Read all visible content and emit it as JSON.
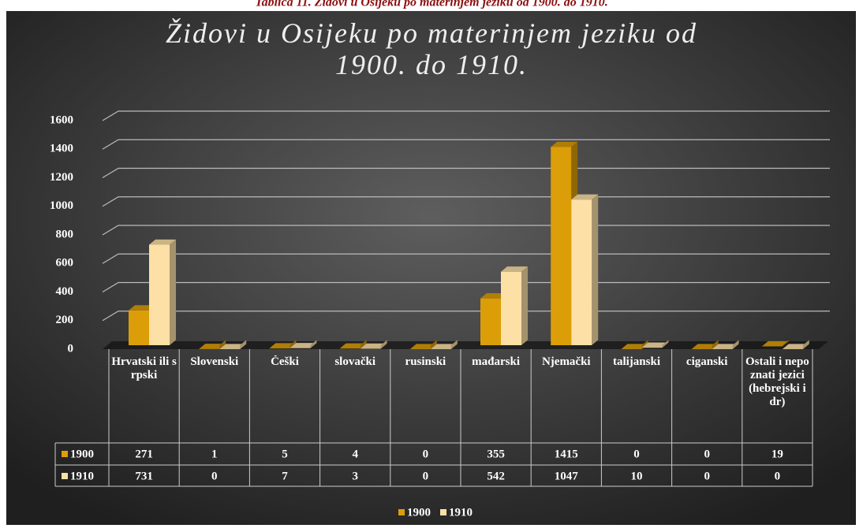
{
  "caption": "Tablica 11. Židovi u Osijeku po materinjem  jeziku od 1900. do 1910.",
  "chart_data": {
    "type": "bar3d",
    "title": "Židovi u Osijeku po materinjem  jeziku od 1900. do 1910.",
    "categories": [
      "Hrvatski ili srpski",
      "Slovenski",
      "Češki",
      "slovački",
      "rusinski",
      "mađarski",
      "Njemački",
      "talijanski",
      "ciganski",
      "Ostali i nepoznati jezici (hebrejski i dr)"
    ],
    "series": [
      {
        "name": "1900",
        "color": "#dc9e08",
        "values": [
          271,
          1,
          5,
          4,
          0,
          355,
          1415,
          0,
          0,
          19
        ]
      },
      {
        "name": "1910",
        "color": "#fde0a6",
        "values": [
          731,
          0,
          7,
          3,
          0,
          542,
          1047,
          10,
          0,
          0
        ]
      }
    ],
    "ylim": [
      0,
      1600
    ],
    "yticks": [
      0,
      200,
      400,
      600,
      800,
      1000,
      1200,
      1400,
      1600
    ],
    "grid": true,
    "legend": "bottom",
    "data_table": true
  }
}
